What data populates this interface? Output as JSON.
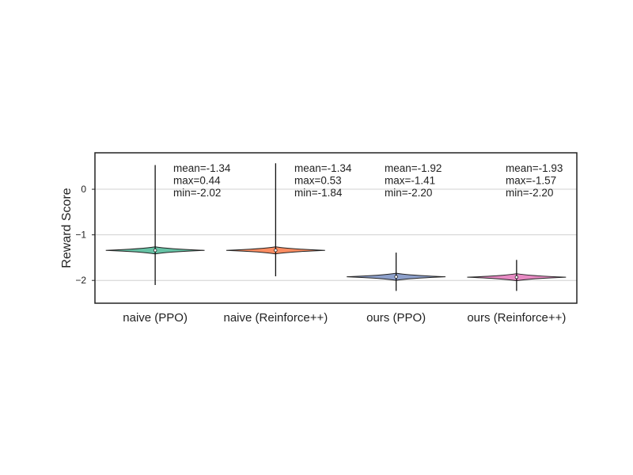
{
  "chart_data": {
    "type": "violin",
    "ylabel": "Reward Score",
    "ylim": [
      -2.5,
      0.8
    ],
    "yticks": [
      0,
      -1,
      -2
    ],
    "ytick_labels": [
      "0",
      "−1",
      "−2"
    ],
    "grid": true,
    "categories": [
      "naive (PPO)",
      "naive (Reinforce++)",
      "ours (PPO)",
      "ours (Reinforce++)"
    ],
    "series": [
      {
        "category": "naive (PPO)",
        "color": "#66c2a5",
        "mean": -1.34,
        "max": 0.44,
        "min": -2.02,
        "whisker_top": 0.53,
        "whisker_bottom": -2.1,
        "annotation": [
          "mean=-1.34",
          "max=0.44",
          "min=-2.02"
        ]
      },
      {
        "category": "naive (Reinforce++)",
        "color": "#fc8d62",
        "mean": -1.34,
        "max": 0.53,
        "min": -1.84,
        "whisker_top": 0.57,
        "whisker_bottom": -1.91,
        "annotation": [
          "mean=-1.34",
          "max=0.53",
          "min=-1.84"
        ]
      },
      {
        "category": "ours (PPO)",
        "color": "#8da0cb",
        "mean": -1.92,
        "max": -1.41,
        "min": -2.2,
        "whisker_top": -1.39,
        "whisker_bottom": -2.23,
        "annotation": [
          "mean=-1.92",
          "max=-1.41",
          "min=-2.20"
        ]
      },
      {
        "category": "ours (Reinforce++)",
        "color": "#e78ac3",
        "mean": -1.93,
        "max": -1.57,
        "min": -2.2,
        "whisker_top": -1.55,
        "whisker_bottom": -2.23,
        "annotation": [
          "mean=-1.93",
          "max=-1.57",
          "min=-2.20"
        ]
      }
    ]
  }
}
